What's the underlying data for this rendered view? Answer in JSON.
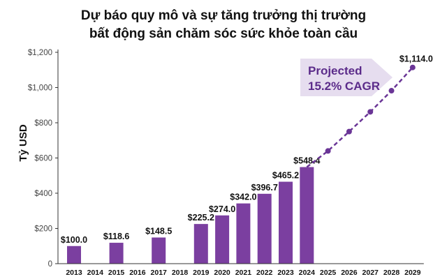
{
  "chart_data": {
    "type": "bar",
    "title_line1": "Dự báo quy mô và sự tăng trưởng thị trường",
    "title_line2": "bất động sản chăm sóc sức khỏe toàn cầu",
    "ylabel": "Tỷ USD",
    "xlabel": "",
    "ylim": [
      0,
      1200
    ],
    "yticks": [
      0,
      200,
      400,
      600,
      800,
      1000,
      1200
    ],
    "ytick_labels": [
      "0",
      "$200",
      "$400",
      "$600",
      "$800",
      "$1,000",
      "$1,200"
    ],
    "categories": [
      "2013",
      "2014",
      "2015",
      "2016",
      "2017",
      "2018",
      "2019",
      "2020",
      "2021",
      "2022",
      "2023",
      "2024",
      "2025",
      "2026",
      "2027",
      "2028",
      "2029"
    ],
    "bars": [
      {
        "year": "2013",
        "value": 100.0,
        "label": "$100.0"
      },
      {
        "year": "2015",
        "value": 118.6,
        "label": "$118.6"
      },
      {
        "year": "2017",
        "value": 148.5,
        "label": "$148.5"
      },
      {
        "year": "2019",
        "value": 225.2,
        "label": "$225.2"
      },
      {
        "year": "2020",
        "value": 274.0,
        "label": "$274.0"
      },
      {
        "year": "2021",
        "value": 342.0,
        "label": "$342.0"
      },
      {
        "year": "2022",
        "value": 396.7,
        "label": "$396.7"
      },
      {
        "year": "2023",
        "value": 465.2,
        "label": "$465.2"
      },
      {
        "year": "2024",
        "value": 548.4,
        "label": "$548.4"
      }
    ],
    "projection": {
      "points": [
        {
          "year": "2024",
          "value": 548.4
        },
        {
          "year": "2025",
          "value": 640
        },
        {
          "year": "2026",
          "value": 750
        },
        {
          "year": "2027",
          "value": 862
        },
        {
          "year": "2028",
          "value": 982
        },
        {
          "year": "2029",
          "value": 1114.0
        }
      ],
      "end_label": "$1,114.0",
      "banner_line1": "Projected",
      "banner_line2": "15.2% CAGR"
    },
    "colors": {
      "bar": "#7b3fa0",
      "line": "#6a3596",
      "banner_fill": "#e6ddef",
      "axis": "#333333"
    }
  }
}
